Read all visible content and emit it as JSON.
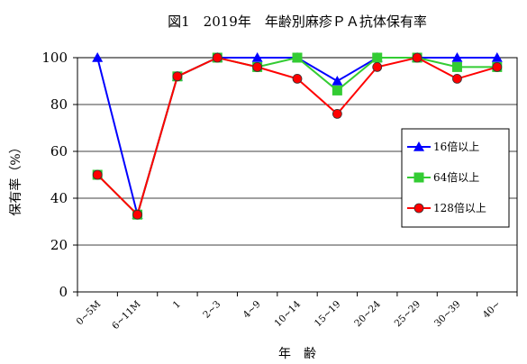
{
  "chart_data": {
    "type": "line",
    "title": "図1　2019年　年齢別麻疹ＰＡ抗体保有率",
    "xlabel": "年　齢",
    "ylabel": "保有率（%）",
    "ylim": [
      0,
      100
    ],
    "yticks": [
      "0",
      "20",
      "40",
      "60",
      "80",
      "100"
    ],
    "grid": true,
    "legend_position": "right",
    "categories": [
      "0~5M",
      "6~11M",
      "1",
      "2~3",
      "4~9",
      "10~14",
      "15~19",
      "20~24",
      "25~29",
      "30~39",
      "40~"
    ],
    "series": [
      {
        "name": "16倍以上",
        "color": "#0000ff",
        "marker": "triangle",
        "values": [
          100,
          33,
          92,
          100,
          100,
          100,
          90,
          100,
          100,
          100,
          100
        ]
      },
      {
        "name": "64倍以上",
        "color": "#33cc33",
        "marker": "square",
        "values": [
          50,
          33,
          92,
          100,
          96,
          100,
          86,
          100,
          100,
          96,
          96
        ]
      },
      {
        "name": "128倍以上",
        "color": "#ff0000",
        "marker": "circle",
        "values": [
          50,
          33,
          92,
          100,
          96,
          91,
          76,
          96,
          100,
          91,
          96
        ]
      }
    ]
  }
}
